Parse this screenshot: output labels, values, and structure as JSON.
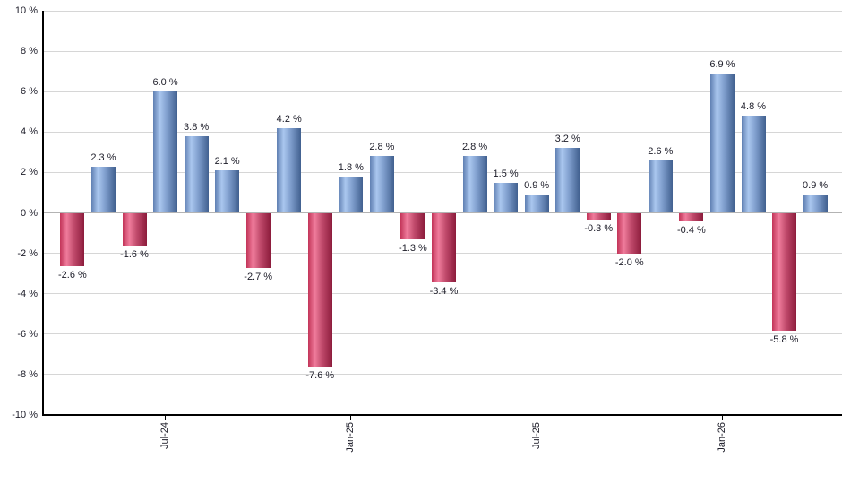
{
  "chart_data": {
    "type": "bar",
    "title": "",
    "unit": "%",
    "ylim": [
      -10,
      10
    ],
    "grid": "horizontal",
    "legend": "none",
    "y_ticks": [
      {
        "value": 10,
        "label": "10 %"
      },
      {
        "value": 8,
        "label": "8 %"
      },
      {
        "value": 6,
        "label": "6 %"
      },
      {
        "value": 4,
        "label": "4 %"
      },
      {
        "value": 2,
        "label": "2 %"
      },
      {
        "value": 0,
        "label": "0 %"
      },
      {
        "value": -2,
        "label": "-2 %"
      },
      {
        "value": -4,
        "label": "-4 %"
      },
      {
        "value": -6,
        "label": "-6 %"
      },
      {
        "value": -8,
        "label": "-8 %"
      },
      {
        "value": -10,
        "label": "-10 %"
      }
    ],
    "x_ticks": [
      {
        "bar_index": 3,
        "label": "Jul-24"
      },
      {
        "bar_index": 9,
        "label": "Jan-25"
      },
      {
        "bar_index": 15,
        "label": "Jul-25"
      },
      {
        "bar_index": 21,
        "label": "Jan-26"
      }
    ],
    "bars": [
      {
        "value": -2.6,
        "label": "-2.6 %"
      },
      {
        "value": 2.3,
        "label": "2.3 %"
      },
      {
        "value": -1.6,
        "label": "-1.6 %"
      },
      {
        "value": 6.0,
        "label": "6.0 %"
      },
      {
        "value": 3.8,
        "label": "3.8 %"
      },
      {
        "value": 2.1,
        "label": "2.1 %"
      },
      {
        "value": -2.7,
        "label": "-2.7 %"
      },
      {
        "value": 4.2,
        "label": "4.2 %"
      },
      {
        "value": -7.6,
        "label": "-7.6 %"
      },
      {
        "value": 1.8,
        "label": "1.8 %"
      },
      {
        "value": 2.8,
        "label": "2.8 %"
      },
      {
        "value": -1.3,
        "label": "-1.3 %"
      },
      {
        "value": -3.4,
        "label": "-3.4 %"
      },
      {
        "value": 2.8,
        "label": "2.8 %"
      },
      {
        "value": 1.5,
        "label": "1.5 %"
      },
      {
        "value": 0.9,
        "label": "0.9 %"
      },
      {
        "value": 3.2,
        "label": "3.2 %"
      },
      {
        "value": -0.3,
        "label": "-0.3 %"
      },
      {
        "value": -2.0,
        "label": "-2.0 %"
      },
      {
        "value": 2.6,
        "label": "2.6 %"
      },
      {
        "value": -0.4,
        "label": "-0.4 %"
      },
      {
        "value": 6.9,
        "label": "6.9 %"
      },
      {
        "value": 4.8,
        "label": "4.8 %"
      },
      {
        "value": -5.8,
        "label": "-5.8 %"
      },
      {
        "value": 0.9,
        "label": "0.9 %"
      }
    ],
    "colors": {
      "positive_edge": "#5f7fb2",
      "positive_light": "#aac7ef",
      "positive_mid": "#7e9dcc",
      "positive_dark": "#41608f",
      "negative_edge": "#c23458",
      "negative_light": "#ef7c9c",
      "negative_mid": "#c04a6b",
      "negative_dark": "#8c1c3c",
      "gridline": "#d6d6d6",
      "zero_line": "#b3b3b3",
      "axis": "#000000",
      "text": "#1c1c28"
    }
  }
}
